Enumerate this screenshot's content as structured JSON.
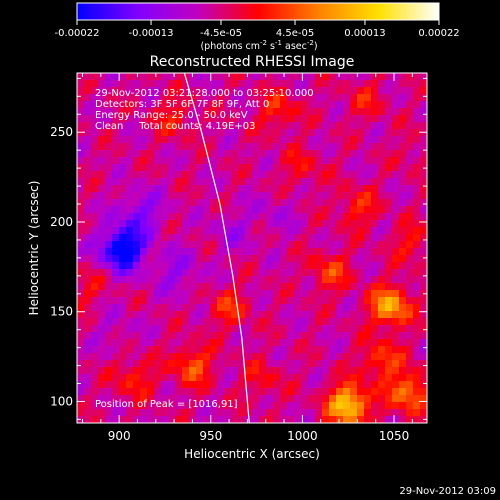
{
  "chart_data": {
    "type": "heatmap",
    "title": "Reconstructed RHESSI Image",
    "xlabel": "Heliocentric X (arcsec)",
    "ylabel": "Heliocentric Y (arcsec)",
    "xlim": [
      877,
      1068
    ],
    "ylim": [
      88,
      283
    ],
    "x_ticks": [
      900,
      950,
      1000,
      1050
    ],
    "y_ticks": [
      100,
      150,
      200,
      250
    ],
    "colorbar": {
      "ticks": [
        "-0.00022",
        "-0.00013",
        "-4.5e-05",
        "4.5e-05",
        "0.00013",
        "0.00022"
      ],
      "tick_values": [
        -0.00022,
        -0.00013,
        -4.5e-05,
        4.5e-05,
        0.00013,
        0.00022
      ],
      "range": [
        -0.00022,
        0.00022
      ],
      "unit_label_parts": [
        "(photons cm",
        "-2",
        " s",
        "-1",
        " asec",
        "-2",
        ")"
      ]
    },
    "info_lines": [
      "29-Nov-2012 03:21:28.000 to 03:25:10.000",
      "Detectors: 3F 5F 6F 7F 8F 9F, Att 0",
      "Energy Range: 25.0 - 50.0 keV",
      "Clean     Total counts: 4.19E+03"
    ],
    "peak_label": "Position of Peak = [1016,91]",
    "peak_position": [
      1016,
      91
    ],
    "limb_curve": [
      [
        935,
        285
      ],
      [
        945,
        250
      ],
      [
        955,
        210
      ],
      [
        962,
        170
      ],
      [
        967,
        135
      ],
      [
        970,
        100
      ],
      [
        971,
        88
      ]
    ],
    "hot_spots": [
      {
        "x": 1025,
        "y": 98,
        "value": 0.00022
      },
      {
        "x": 1048,
        "y": 153,
        "value": 0.00018
      },
      {
        "x": 1058,
        "y": 105,
        "value": 0.00015
      },
      {
        "x": 940,
        "y": 120,
        "value": 0.00012
      },
      {
        "x": 1043,
        "y": 123,
        "value": 0.00011
      },
      {
        "x": 1015,
        "y": 172,
        "value": 0.0001
      },
      {
        "x": 1030,
        "y": 208,
        "value": 9e-05
      },
      {
        "x": 987,
        "y": 262,
        "value": 9e-05
      },
      {
        "x": 908,
        "y": 113,
        "value": 9e-05
      },
      {
        "x": 960,
        "y": 152,
        "value": 9e-05
      },
      {
        "x": 930,
        "y": 258,
        "value": 8e-05
      },
      {
        "x": 1060,
        "y": 188,
        "value": 8e-05
      },
      {
        "x": 1000,
        "y": 230,
        "value": 7e-05
      },
      {
        "x": 1035,
        "y": 268,
        "value": 7e-05
      },
      {
        "x": 978,
        "y": 112,
        "value": 7e-05
      },
      {
        "x": 883,
        "y": 163,
        "value": 6e-05
      },
      {
        "x": 1062,
        "y": 238,
        "value": 5e-05
      }
    ],
    "cold_spots": [
      {
        "x": 902,
        "y": 185,
        "value": -0.00022
      },
      {
        "x": 912,
        "y": 205,
        "value": -0.0001
      },
      {
        "x": 932,
        "y": 172,
        "value": -8e-05
      },
      {
        "x": 962,
        "y": 195,
        "value": -6e-05
      },
      {
        "x": 985,
        "y": 205,
        "value": -5e-05
      },
      {
        "x": 898,
        "y": 140,
        "value": -5e-05
      }
    ]
  },
  "colors": {
    "background": "#000000",
    "foreground": "#ffffff",
    "colormap": [
      "#0000ff",
      "#8000ff",
      "#c000c0",
      "#ff0000",
      "#ff8000",
      "#ffe000",
      "#ffffff"
    ]
  },
  "timestamp": "29-Nov-2012 03:09"
}
